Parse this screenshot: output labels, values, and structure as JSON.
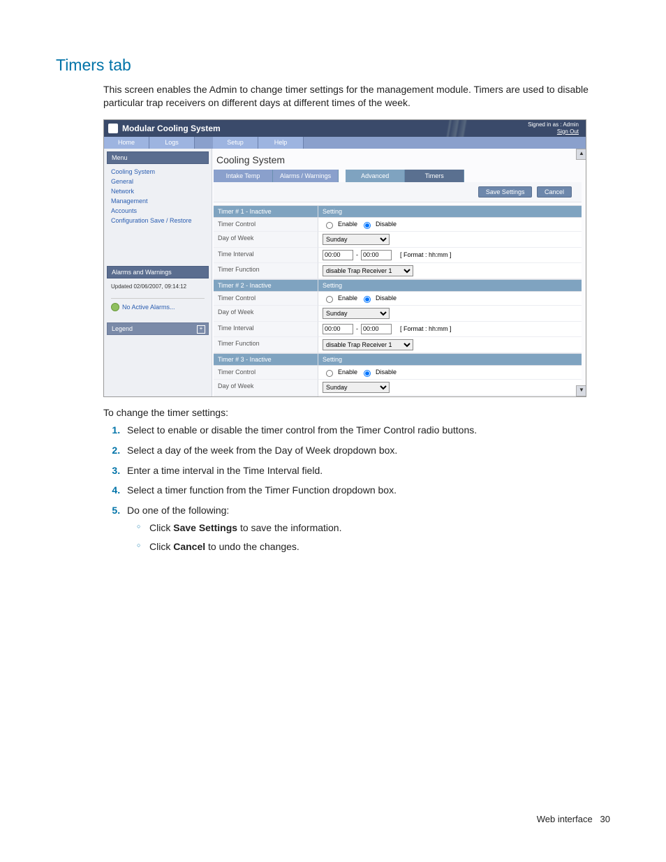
{
  "doc": {
    "section_title": "Timers tab",
    "intro": "This screen enables the Admin to change timer settings for the management module. Timers are used to disable particular trap receivers on different days at different times of the week.",
    "instr_lead": "To change the timer settings:",
    "steps": [
      "Select to enable or disable the timer control from the Timer Control radio buttons.",
      "Select a day of the week from the Day of Week dropdown box.",
      "Enter a time interval in the Time Interval field.",
      "Select a timer function from the Timer Function dropdown box.",
      "Do one of the following:"
    ],
    "substeps": {
      "a_prefix": "Click ",
      "a_bold": "Save Settings",
      "a_suffix": " to save the information.",
      "b_prefix": "Click ",
      "b_bold": "Cancel",
      "b_suffix": " to undo the changes."
    },
    "footer_label": "Web interface",
    "footer_page": "30"
  },
  "ui": {
    "header": {
      "title": "Modular Cooling System",
      "signed_in": "Signed in as : Admin",
      "sign_out": "Sign Out"
    },
    "tabs": [
      "Home",
      "Logs",
      "Setup",
      "Help"
    ],
    "menu": {
      "head": "Menu",
      "items": [
        "Cooling System",
        "General",
        "Network",
        "Management",
        "Accounts",
        "Configuration Save / Restore"
      ]
    },
    "alarms": {
      "head": "Alarms and Warnings",
      "updated": "Updated 02/06/2007, 09:14:12",
      "no_active": "No Active Alarms..."
    },
    "legend": {
      "head": "Legend"
    },
    "main": {
      "title": "Cooling System",
      "sub_tabs": [
        "Intake Temp",
        "Alarms / Warnings",
        "Advanced",
        "Timers"
      ],
      "btn_save": "Save Settings",
      "btn_cancel": "Cancel",
      "timer_headers": [
        "Timer # 1 - Inactive",
        "Timer # 2 - Inactive",
        "Timer # 3 - Inactive"
      ],
      "setting_label": "Setting",
      "row_labels": {
        "timer_control": "Timer Control",
        "day_of_week": "Day of Week",
        "time_interval": "Time Interval",
        "timer_function": "Timer Function"
      },
      "enable_label": "Enable",
      "disable_label": "Disable",
      "day_value": "Sunday",
      "time_from": "00:00",
      "time_to": "00:00",
      "time_format": "[ Format : hh:mm ]",
      "function_value": "disable Trap Receiver 1"
    }
  }
}
